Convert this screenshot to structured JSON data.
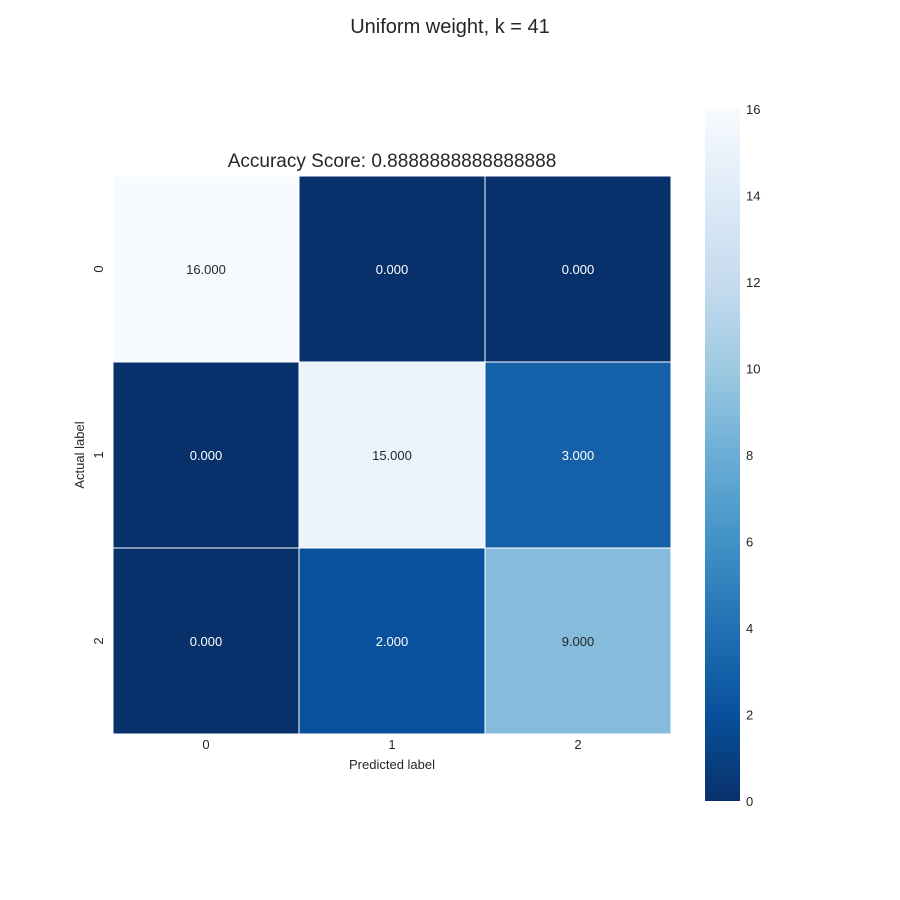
{
  "chart_data": {
    "type": "heatmap",
    "suptitle": "Uniform weight, k = 41",
    "title": "Accuracy Score: 0.8888888888888888",
    "xlabel": "Predicted label",
    "ylabel": "Actual label",
    "x_categories": [
      "0",
      "1",
      "2"
    ],
    "y_categories": [
      "0",
      "1",
      "2"
    ],
    "values": [
      [
        16,
        0,
        0
      ],
      [
        0,
        15,
        3
      ],
      [
        0,
        2,
        9
      ]
    ],
    "cell_labels": [
      [
        "16.000",
        "0.000",
        "0.000"
      ],
      [
        "0.000",
        "15.000",
        "3.000"
      ],
      [
        "0.000",
        "2.000",
        "9.000"
      ]
    ],
    "colormap": "Blues_r",
    "color_stops": [
      "#08306b",
      "#08519c",
      "#2171b5",
      "#4292c6",
      "#6baed6",
      "#9ecae1",
      "#c6dbef",
      "#deebf7",
      "#f7fbff"
    ],
    "colorbar": {
      "range": [
        0,
        16
      ],
      "ticks": [
        "0",
        "2",
        "4",
        "6",
        "8",
        "10",
        "12",
        "14",
        "16"
      ]
    },
    "grid": false
  }
}
